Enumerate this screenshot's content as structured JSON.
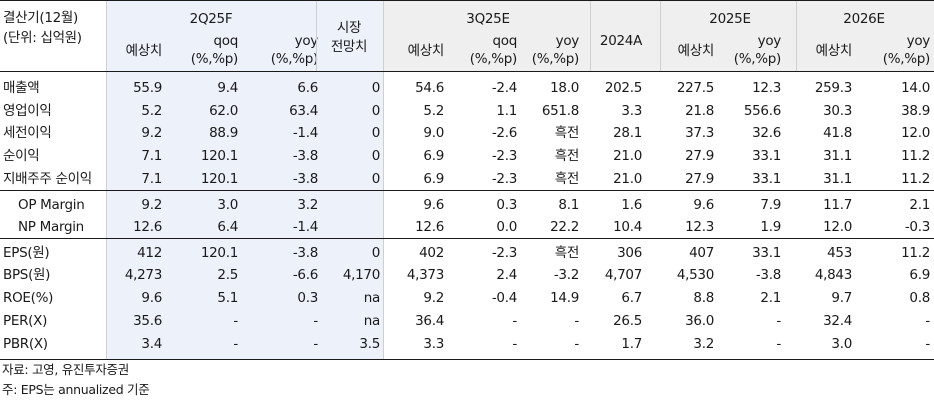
{
  "header": {
    "row_label_lines": [
      "결산기(12월)",
      "(단위: 십억원)"
    ],
    "group_2q25f": "2Q25F",
    "group_market_lines": [
      "시장",
      "전망치"
    ],
    "group_3q25e": "3Q25E",
    "group_2025e": "2025E",
    "group_2026e": "2026E",
    "sub_estimate": "예상치",
    "sub_qoq_lines": [
      "qoq",
      "(%,%p)"
    ],
    "sub_yoy_lines": [
      "yoy",
      "(%,%p)"
    ],
    "sub_2024a": "2024A"
  },
  "rows": [
    {
      "label": "매출액",
      "indent": false,
      "values": [
        "55.9",
        "9.4",
        "6.6",
        "0",
        "54.6",
        "-2.4",
        "18.0",
        "202.5",
        "227.5",
        "12.3",
        "259.3",
        "14.0"
      ]
    },
    {
      "label": "영업이익",
      "indent": false,
      "values": [
        "5.2",
        "62.0",
        "63.4",
        "0",
        "5.2",
        "1.1",
        "651.8",
        "3.3",
        "21.8",
        "556.6",
        "30.3",
        "38.9"
      ]
    },
    {
      "label": "세전이익",
      "indent": false,
      "values": [
        "9.2",
        "88.9",
        "-1.4",
        "0",
        "9.0",
        "-2.6",
        "흑전",
        "28.1",
        "37.3",
        "32.6",
        "41.8",
        "12.0"
      ]
    },
    {
      "label": "순이익",
      "indent": false,
      "values": [
        "7.1",
        "120.1",
        "-3.8",
        "0",
        "6.9",
        "-2.3",
        "흑전",
        "21.0",
        "27.9",
        "33.1",
        "31.1",
        "11.2"
      ]
    },
    {
      "label": "지배주주 순이익",
      "indent": false,
      "values": [
        "7.1",
        "120.1",
        "-3.8",
        "0",
        "6.9",
        "-2.3",
        "흑전",
        "21.0",
        "27.9",
        "33.1",
        "31.1",
        "11.2"
      ]
    },
    {
      "label": "OP Margin",
      "indent": true,
      "values": [
        "9.2",
        "3.0",
        "3.2",
        "",
        "9.6",
        "0.3",
        "8.1",
        "1.6",
        "9.6",
        "7.9",
        "11.7",
        "2.1"
      ]
    },
    {
      "label": "NP Margin",
      "indent": true,
      "values": [
        "12.6",
        "6.4",
        "-1.4",
        "",
        "12.6",
        "0.0",
        "22.2",
        "10.4",
        "12.3",
        "1.9",
        "12.0",
        "-0.3"
      ]
    },
    {
      "label": "EPS(원)",
      "indent": false,
      "values": [
        "412",
        "120.1",
        "-3.8",
        "0",
        "402",
        "-2.3",
        "흑전",
        "306",
        "407",
        "33.1",
        "453",
        "11.2"
      ]
    },
    {
      "label": "BPS(원)",
      "indent": false,
      "values": [
        "4,273",
        "2.5",
        "-6.6",
        "4,170",
        "4,373",
        "2.4",
        "-3.2",
        "4,707",
        "4,530",
        "-3.8",
        "4,843",
        "6.9"
      ]
    },
    {
      "label": "ROE(%)",
      "indent": false,
      "values": [
        "9.6",
        "5.1",
        "0.3",
        "na",
        "9.2",
        "-0.4",
        "14.9",
        "6.7",
        "8.8",
        "2.1",
        "9.7",
        "0.8"
      ]
    },
    {
      "label": "PER(X)",
      "indent": false,
      "values": [
        "35.6",
        "-",
        "-",
        "na",
        "36.4",
        "-",
        "-",
        "26.5",
        "36.0",
        "-",
        "32.4",
        "-"
      ]
    },
    {
      "label": "PBR(X)",
      "indent": false,
      "values": [
        "3.4",
        "-",
        "-",
        "3.5",
        "3.3",
        "-",
        "-",
        "1.7",
        "3.2",
        "-",
        "3.0",
        "-"
      ]
    }
  ],
  "footnotes": [
    "자료: 고영, 유진투자증권",
    "주: EPS는 annualized 기준"
  ],
  "colors": {
    "highlight_blue": "#edf1fa",
    "header_gray": "#efefef",
    "rule": "#1a1a1a",
    "divider": "#cfcfcf"
  }
}
